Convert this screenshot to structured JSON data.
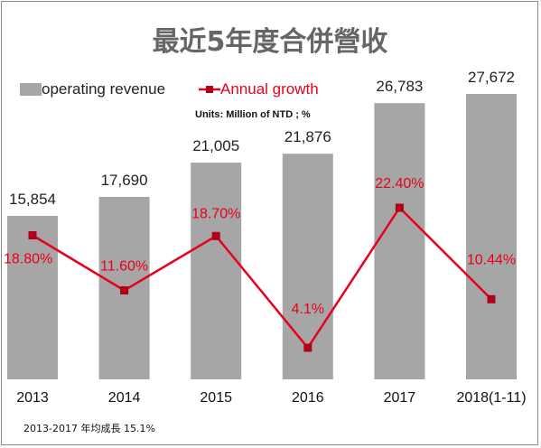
{
  "chart_data": {
    "type": "bar",
    "title": "最近5年度合併營收",
    "units": "Units: Million of NTD ; %",
    "categories": [
      "2013",
      "2014",
      "2015",
      "2016",
      "2017",
      "2018(1-11)"
    ],
    "series": [
      {
        "name": "operating revenue",
        "type": "bar",
        "color": "#a6a6a6",
        "values": [
          15854,
          17690,
          21005,
          21876,
          26783,
          27672
        ],
        "labels": [
          "15,854",
          "17,690",
          "21,005",
          "21,876",
          "26,783",
          "27,672"
        ]
      },
      {
        "name": "Annual growth",
        "type": "line",
        "color": "#e8001c",
        "values": [
          18.8,
          11.6,
          18.7,
          4.1,
          22.4,
          10.44
        ],
        "labels": [
          "18.80%",
          "11.60%",
          "18.70%",
          "4.1%",
          "22.40%",
          "10.44%"
        ]
      }
    ],
    "legend_position": "top-left",
    "grid": false,
    "footnote": "2013-2017 年均成長 15.1%"
  }
}
